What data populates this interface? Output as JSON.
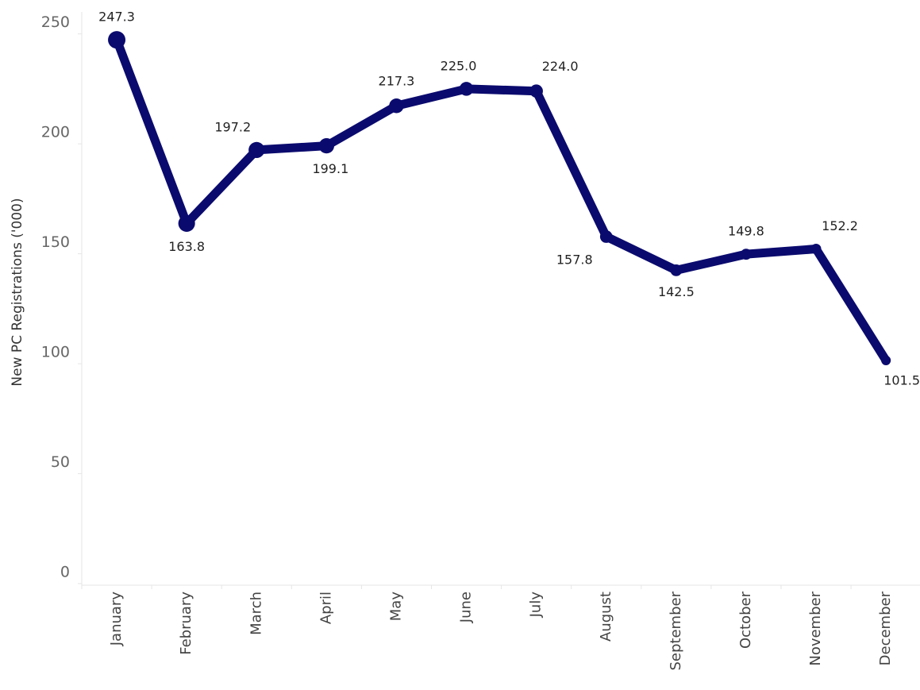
{
  "chart_data": {
    "type": "line",
    "y_label": "New PC Registrations ('000)",
    "categories": [
      "January",
      "February",
      "March",
      "April",
      "May",
      "June",
      "July",
      "August",
      "September",
      "October",
      "November",
      "December"
    ],
    "series": [
      {
        "name": "New PC Registrations",
        "color": "#0a0a6e",
        "values": [
          247.3,
          163.8,
          197.2,
          199.1,
          217.3,
          225.0,
          224.0,
          157.8,
          142.5,
          149.8,
          152.2,
          101.5
        ],
        "value_labels": [
          "247.3",
          "163.8",
          "197.2",
          "199.1",
          "217.3",
          "225.0",
          "224.0",
          "157.8",
          "142.5",
          "149.8",
          "152.2",
          "101.5"
        ]
      }
    ],
    "ylim": [
      0,
      260
    ],
    "yticks": [
      0,
      50,
      100,
      150,
      200,
      250
    ],
    "grid": false
  }
}
